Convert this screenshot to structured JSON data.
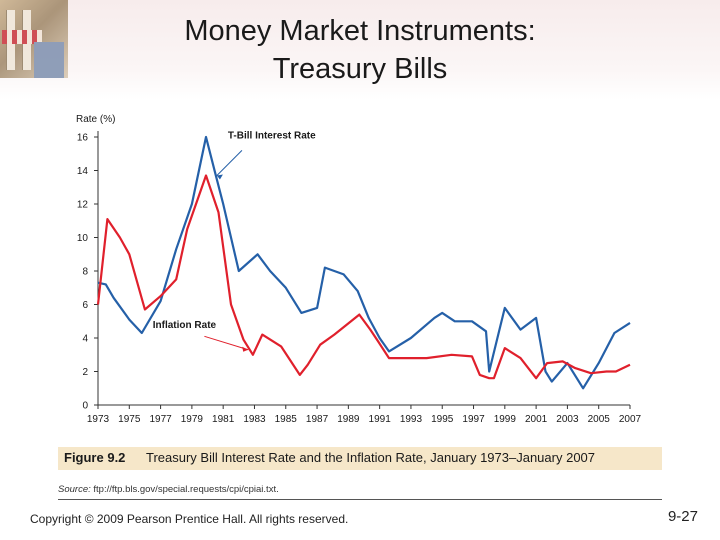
{
  "slide": {
    "title_line1": "Money Market Instruments:",
    "title_line2": "Treasury Bills",
    "copyright": "Copyright © 2009 Pearson Prentice Hall. All rights reserved.",
    "slide_number": "9-27"
  },
  "figure": {
    "label": "Figure 9.2",
    "caption": "Treasury Bill Interest Rate and the Inflation Rate, January 1973–January 2007",
    "source_prefix": "Source:",
    "source_url": "ftp://ftp.bls.gov/special.requests/cpi/cpiai.txt."
  },
  "colors": {
    "tbill": "#2560a8",
    "inflation": "#e0202c",
    "caption_bg": "#f6e7c9"
  },
  "chart_data": {
    "type": "line",
    "ylabel": "Rate (%)",
    "xlabel": "",
    "xlim": [
      1973,
      2007
    ],
    "ylim": [
      0,
      16
    ],
    "xticks": [
      "1973",
      "1975",
      "1977",
      "1979",
      "1981",
      "1983",
      "1985",
      "1987",
      "1989",
      "1991",
      "1993",
      "1995",
      "1997",
      "1999",
      "2001",
      "2003",
      "2005",
      "2007"
    ],
    "yticks": [
      "0",
      "2",
      "4",
      "6",
      "8",
      "10",
      "12",
      "14",
      "16"
    ],
    "grid": false,
    "annotations": [
      "T-Bill Interest Rate",
      "Inflation Rate"
    ],
    "series": [
      {
        "name": "T-Bill Interest Rate",
        "points": [
          [
            1973,
            7.3
          ],
          [
            1973.5,
            7.2
          ],
          [
            1974,
            6.4
          ],
          [
            1975,
            5.1
          ],
          [
            1975.8,
            4.3
          ],
          [
            1977,
            6.2
          ],
          [
            1978,
            9.3
          ],
          [
            1979,
            12.0
          ],
          [
            1979.9,
            16.0
          ],
          [
            1980.5,
            13.8
          ],
          [
            1981,
            12.0
          ],
          [
            1982,
            8.0
          ],
          [
            1983.2,
            9.0
          ],
          [
            1984,
            8.0
          ],
          [
            1985,
            7.0
          ],
          [
            1986,
            5.5
          ],
          [
            1987,
            5.8
          ],
          [
            1987.5,
            8.2
          ],
          [
            1988.7,
            7.8
          ],
          [
            1989.6,
            6.8
          ],
          [
            1990.3,
            5.2
          ],
          [
            1991,
            4.0
          ],
          [
            1991.6,
            3.2
          ],
          [
            1993,
            4.0
          ],
          [
            1994.5,
            5.2
          ],
          [
            1995,
            5.5
          ],
          [
            1995.8,
            5.0
          ],
          [
            1996.9,
            5.0
          ],
          [
            1997.8,
            4.4
          ],
          [
            1998,
            2.0
          ],
          [
            1999,
            5.8
          ],
          [
            2000,
            4.5
          ],
          [
            2001,
            5.2
          ],
          [
            2001.6,
            2.0
          ],
          [
            2002,
            1.4
          ],
          [
            2003,
            2.5
          ],
          [
            2004,
            1.0
          ],
          [
            2005,
            2.5
          ],
          [
            2006,
            4.3
          ],
          [
            2007,
            4.9
          ]
        ]
      },
      {
        "name": "Inflation Rate",
        "points": [
          [
            1973,
            6.0
          ],
          [
            1973.6,
            11.1
          ],
          [
            1974.4,
            10.0
          ],
          [
            1975,
            9.0
          ],
          [
            1976,
            5.7
          ],
          [
            1977,
            6.5
          ],
          [
            1978,
            7.5
          ],
          [
            1978.7,
            10.5
          ],
          [
            1979.9,
            13.7
          ],
          [
            1980.7,
            11.5
          ],
          [
            1981.5,
            6.0
          ],
          [
            1982.3,
            3.9
          ],
          [
            1982.9,
            3.0
          ],
          [
            1983.5,
            4.2
          ],
          [
            1984.7,
            3.5
          ],
          [
            1985.9,
            1.8
          ],
          [
            1986.4,
            2.4
          ],
          [
            1987.2,
            3.6
          ],
          [
            1988.1,
            4.2
          ],
          [
            1989.7,
            5.4
          ],
          [
            1990.4,
            4.5
          ],
          [
            1990.9,
            3.8
          ],
          [
            1991.6,
            2.8
          ],
          [
            1993,
            2.8
          ],
          [
            1994,
            2.8
          ],
          [
            1995.6,
            3.0
          ],
          [
            1996.9,
            2.9
          ],
          [
            1997.4,
            1.8
          ],
          [
            1998,
            1.6
          ],
          [
            1998.3,
            1.6
          ],
          [
            1999,
            3.4
          ],
          [
            2000,
            2.8
          ],
          [
            2001,
            1.6
          ],
          [
            2001.7,
            2.5
          ],
          [
            2002.7,
            2.6
          ],
          [
            2003.5,
            2.2
          ],
          [
            2004.5,
            1.9
          ],
          [
            2005.5,
            2.0
          ],
          [
            2006.1,
            2.0
          ],
          [
            2007,
            2.4
          ]
        ]
      }
    ]
  }
}
